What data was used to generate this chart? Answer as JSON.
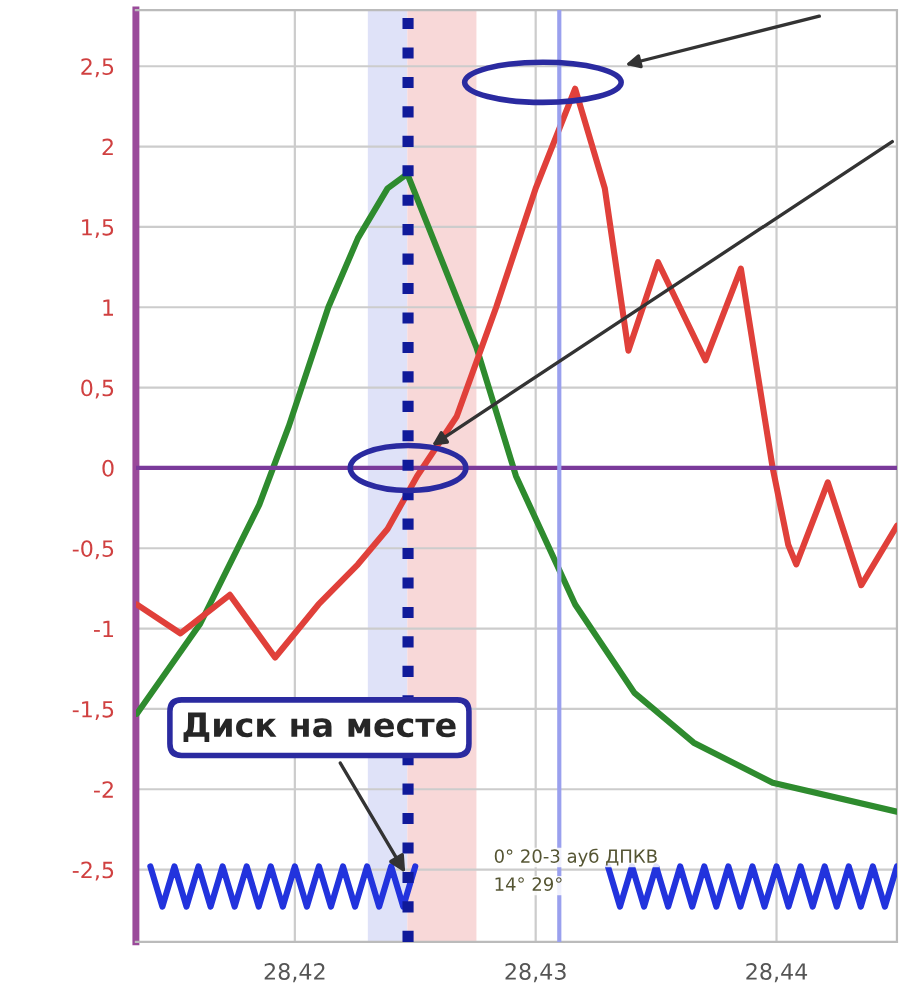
{
  "chart_data": {
    "type": "line",
    "xlim": [
      28.4134,
      28.445
    ],
    "ylim": [
      -2.95,
      2.85
    ],
    "xticks": [
      {
        "value": 28.42,
        "label": "28,42"
      },
      {
        "value": 28.43,
        "label": "28,43"
      },
      {
        "value": 28.44,
        "label": "28,44"
      }
    ],
    "yticks": [
      {
        "value": -2.5,
        "label": "-2,5"
      },
      {
        "value": -2,
        "label": "-2"
      },
      {
        "value": -1.5,
        "label": "-1,5"
      },
      {
        "value": -1,
        "label": "-1"
      },
      {
        "value": -0.5,
        "label": "-0,5"
      },
      {
        "value": 0,
        "label": "0"
      },
      {
        "value": 0.5,
        "label": "0,5"
      },
      {
        "value": 1,
        "label": "1"
      },
      {
        "value": 1.5,
        "label": "1,5"
      },
      {
        "value": 2,
        "label": "2"
      },
      {
        "value": 2.5,
        "label": "2,5"
      }
    ],
    "grid": true,
    "line_style": "solid",
    "series": [
      {
        "color": "#2e8b2e",
        "x": [
          28.41344,
          28.41607,
          28.41852,
          28.41975,
          28.42139,
          28.42262,
          28.42385,
          28.42467,
          28.42754,
          28.42918,
          28.43164,
          28.4341,
          28.43656,
          28.43984,
          28.445
        ],
        "values": [
          -1.53,
          -0.97,
          -0.23,
          0.26,
          1.0,
          1.43,
          1.74,
          1.83,
          0.75,
          -0.05,
          -0.85,
          -1.4,
          -1.71,
          -1.96,
          -2.14
        ]
      },
      {
        "color": "#e0403a",
        "x": [
          28.41344,
          28.41525,
          28.4173,
          28.41918,
          28.42098,
          28.42262,
          28.42385,
          28.42508,
          28.42672,
          28.42836,
          28.43,
          28.43164,
          28.43287,
          28.43385,
          28.43508,
          28.43705,
          28.43852,
          28.43984,
          28.44049,
          28.44082,
          28.44213,
          28.44352,
          28.445
        ],
        "values": [
          -0.85,
          -1.03,
          -0.79,
          -1.18,
          -0.85,
          -0.6,
          -0.38,
          -0.05,
          0.32,
          1.0,
          1.74,
          2.36,
          1.74,
          0.73,
          1.28,
          0.67,
          1.24,
          0.0,
          -0.48,
          -0.6,
          -0.09,
          -0.73,
          -0.36
        ]
      },
      {
        "color": "#2233dd",
        "x": [
          28.414,
          28.4145,
          28.415,
          28.4155,
          28.416,
          28.4165,
          28.417,
          28.4175,
          28.418,
          28.4185,
          28.419,
          28.4195,
          28.42,
          28.4205,
          28.421,
          28.4215,
          28.422,
          28.4225,
          28.423,
          28.4235,
          28.424,
          28.4245,
          28.425,
          28.429,
          28.433,
          28.4335,
          28.434,
          28.4345,
          28.435,
          28.4355,
          28.436,
          28.4365,
          28.437,
          28.4375,
          28.438,
          28.4385,
          28.439,
          28.4395,
          28.44,
          28.4405,
          28.441,
          28.4415,
          28.442,
          28.4425,
          28.443,
          28.4435,
          28.444,
          28.4445,
          28.445
        ],
        "values": [
          -2.48,
          -2.73,
          -2.48,
          -2.73,
          -2.48,
          -2.73,
          -2.48,
          -2.73,
          -2.48,
          -2.73,
          -2.48,
          -2.73,
          -2.48,
          -2.73,
          -2.48,
          -2.73,
          -2.48,
          -2.73,
          -2.48,
          -2.73,
          -2.48,
          -2.73,
          -2.48,
          null,
          -2.48,
          -2.73,
          -2.48,
          -2.73,
          -2.48,
          -2.73,
          -2.48,
          -2.73,
          -2.48,
          -2.73,
          -2.48,
          -2.73,
          -2.48,
          -2.73,
          -2.48,
          -2.73,
          -2.48,
          -2.73,
          -2.48,
          -2.73,
          -2.48,
          -2.73,
          -2.48,
          -2.73,
          -2.48
        ]
      }
    ],
    "ref_lines": [
      {
        "axis": "y",
        "value": 0,
        "color": "#7a3a9a",
        "line_style": "solid"
      },
      {
        "axis": "x",
        "value": 28.4247,
        "color": "#101a9a",
        "line_style": "dotted"
      },
      {
        "axis": "x",
        "value": 28.43098,
        "color": "#9aa0ee",
        "line_style": "solid"
      }
    ],
    "bands": [
      {
        "axis": "x",
        "from": 28.42303,
        "to": 28.42467,
        "color": "#dfe2f8"
      },
      {
        "axis": "x",
        "from": 28.42467,
        "to": 28.42754,
        "color": "#f8d8d8"
      }
    ],
    "annotations": [
      {
        "text": "Диск на месте",
        "x": 28.4247,
        "y": -2.55
      },
      "0° 20-3 ауб ДПКВ",
      "14° 29°"
    ]
  }
}
